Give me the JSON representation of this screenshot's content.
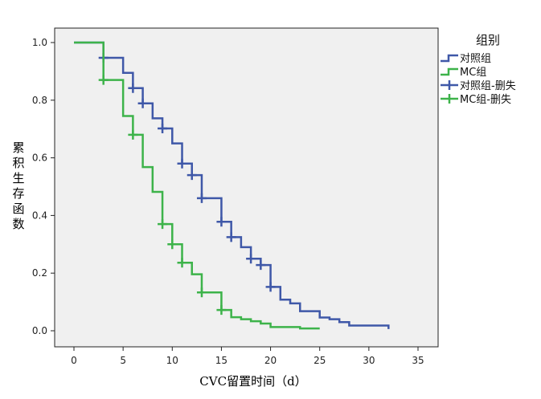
{
  "chart_data": {
    "type": "line",
    "subtype": "kaplan-meier-step",
    "xlabel": "CVC留置时间（d）",
    "ylabel": "累积生存函数",
    "xlim": [
      0,
      35
    ],
    "ylim": [
      0,
      1
    ],
    "xticks": [
      "0",
      "5",
      "10",
      "15",
      "20",
      "25",
      "30",
      "35"
    ],
    "yticks": [
      "0.0",
      "0.2",
      "0.4",
      "0.6",
      "0.8",
      "1.0"
    ],
    "grid": false,
    "legend": {
      "title": "组别",
      "position": "right",
      "entries": [
        "对照组",
        "MC组",
        "对照组-删失",
        "MC组-删失"
      ]
    },
    "series": [
      {
        "name": "对照组",
        "color": "#3f58a8",
        "steps": [
          [
            0,
            1.0
          ],
          [
            3,
            0.947
          ],
          [
            5,
            0.895
          ],
          [
            6,
            0.842
          ],
          [
            7,
            0.789
          ],
          [
            8,
            0.737
          ],
          [
            9,
            0.702
          ],
          [
            10,
            0.65
          ],
          [
            11,
            0.58
          ],
          [
            12,
            0.54
          ],
          [
            13,
            0.46
          ],
          [
            15,
            0.378
          ],
          [
            16,
            0.325
          ],
          [
            17,
            0.29
          ],
          [
            18,
            0.25
          ],
          [
            19,
            0.228
          ],
          [
            20,
            0.152
          ],
          [
            21,
            0.108
          ],
          [
            22,
            0.095
          ],
          [
            23,
            0.068
          ],
          [
            25,
            0.046
          ],
          [
            26,
            0.04
          ],
          [
            27,
            0.03
          ],
          [
            28,
            0.018
          ],
          [
            32,
            0.006
          ]
        ],
        "end": 32,
        "censored": [
          [
            3,
            0.947
          ],
          [
            6,
            0.842
          ],
          [
            7,
            0.789
          ],
          [
            9,
            0.702
          ],
          [
            11,
            0.58
          ],
          [
            12,
            0.54
          ],
          [
            13,
            0.46
          ],
          [
            15,
            0.378
          ],
          [
            16,
            0.325
          ],
          [
            18,
            0.25
          ],
          [
            19,
            0.228
          ],
          [
            20,
            0.152
          ]
        ]
      },
      {
        "name": "MC组",
        "color": "#3db34a",
        "steps": [
          [
            0,
            1.0
          ],
          [
            3,
            0.87
          ],
          [
            5,
            0.745
          ],
          [
            6,
            0.68
          ],
          [
            7,
            0.568
          ],
          [
            8,
            0.482
          ],
          [
            9,
            0.37
          ],
          [
            10,
            0.3
          ],
          [
            11,
            0.236
          ],
          [
            12,
            0.196
          ],
          [
            13,
            0.133
          ],
          [
            15,
            0.072
          ],
          [
            16,
            0.047
          ],
          [
            17,
            0.04
          ],
          [
            18,
            0.033
          ],
          [
            19,
            0.025
          ],
          [
            20,
            0.013
          ],
          [
            23,
            0.008
          ]
        ],
        "end": 25,
        "censored": [
          [
            3,
            0.87
          ],
          [
            6,
            0.68
          ],
          [
            9,
            0.37
          ],
          [
            10,
            0.3
          ],
          [
            11,
            0.236
          ],
          [
            13,
            0.133
          ],
          [
            15,
            0.072
          ]
        ]
      }
    ]
  }
}
